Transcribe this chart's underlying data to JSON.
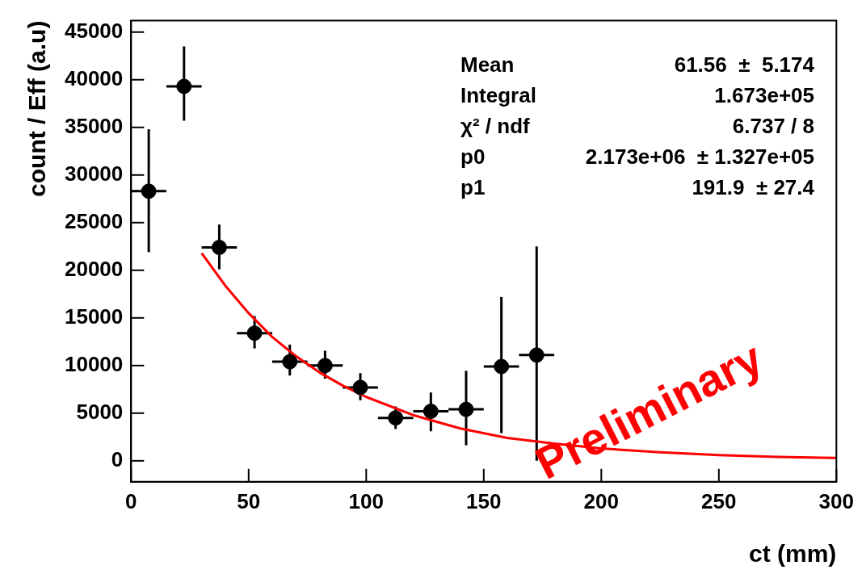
{
  "chart_data": {
    "type": "scatter",
    "xlabel": "ct (mm)",
    "ylabel": "count / Eff (a.u)",
    "xlim": [
      0,
      300
    ],
    "xticks": [
      0,
      50,
      100,
      150,
      200,
      250,
      300
    ],
    "ylim": [
      -2200,
      46200
    ],
    "yticks": [
      0,
      5000,
      10000,
      15000,
      20000,
      25000,
      30000,
      35000,
      40000,
      45000
    ],
    "grid": false,
    "legend": false,
    "marker": "circle",
    "series": [
      {
        "color": "#000000",
        "x": [
          7.5,
          22.5,
          37.5,
          52.5,
          67.5,
          82.5,
          97.5,
          112.5,
          127.5,
          142.5,
          157.5,
          172.5
        ],
        "values": [
          28300,
          39300,
          22400,
          13400,
          10400,
          10000,
          7700,
          4500,
          5200,
          5400,
          9900,
          11100
        ],
        "errors": [
          [
            21900,
            34800
          ],
          [
            35700,
            43500
          ],
          [
            20100,
            24800
          ],
          [
            11800,
            15200
          ],
          [
            8950,
            12200
          ],
          [
            8630,
            11560
          ],
          [
            6350,
            9200
          ],
          [
            3340,
            5700
          ],
          [
            3100,
            7170
          ],
          [
            1630,
            9450
          ],
          [
            2900,
            17200
          ],
          [
            0,
            22500
          ]
        ],
        "xerrors": [
          7.5,
          7.5,
          7.5,
          7.5,
          7.5,
          7.5,
          7.5,
          7.5,
          7.5,
          7.5,
          7.5,
          7.5
        ]
      },
      {
        "type": "line",
        "color": "#ff0000",
        "marker": "none",
        "x": [
          30,
          40,
          50,
          60,
          70,
          80,
          90,
          100,
          120,
          140,
          160,
          180,
          200,
          225,
          250,
          275,
          300
        ],
        "values": [
          21800,
          18400,
          15500,
          13000,
          11000,
          9300,
          7900,
          6700,
          4800,
          3400,
          2400,
          1800,
          1300,
          900,
          600,
          400,
          300
        ]
      }
    ],
    "annotations": [
      "Mean",
      "61.56  ±  5.174",
      "Integral",
      "1.673e+05",
      "χ² / ndf",
      "6.737 / 8",
      "p0",
      "2.173e+06  ± 1.327e+05",
      "p1",
      "191.9  ± 27.4",
      "Preliminary"
    ]
  }
}
